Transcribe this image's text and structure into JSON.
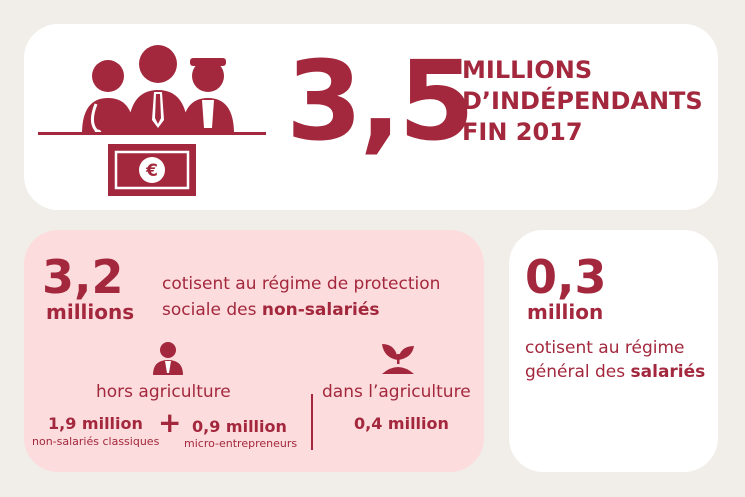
{
  "headline": {
    "number": "3,5",
    "line1": "MILLIONS",
    "line2": "D’INDÉPENDANTS",
    "line3": "FIN 2017"
  },
  "non_salaries": {
    "number": "3,2",
    "unit": "millions",
    "desc_line1": "cotisent au régime de protection",
    "desc_line2_prefix": "sociale des ",
    "desc_line2_bold": "non-salariés",
    "hors_label": "hors agriculture",
    "dans_label": "dans l’agriculture",
    "value1": "1,9 million",
    "value1_sub": "non-salariés classiques",
    "plus": "+",
    "value2": "0,9 million",
    "value2_sub": "micro-entrepreneurs",
    "value3": "0,4 million"
  },
  "salaries": {
    "number": "0,3",
    "unit": "million",
    "desc_line1": "cotisent au régime",
    "desc_line2_prefix": "général des ",
    "desc_line2_bold": "salariés"
  },
  "icons": {
    "workers": "workers-group-icon",
    "banknote": "euro-banknote-icon",
    "person": "businessperson-icon",
    "plant": "seedling-icon"
  },
  "colors": {
    "accent": "#a3283d",
    "background": "#f1eeea",
    "pink_card": "#fcdcdc",
    "white_card": "#ffffff"
  }
}
